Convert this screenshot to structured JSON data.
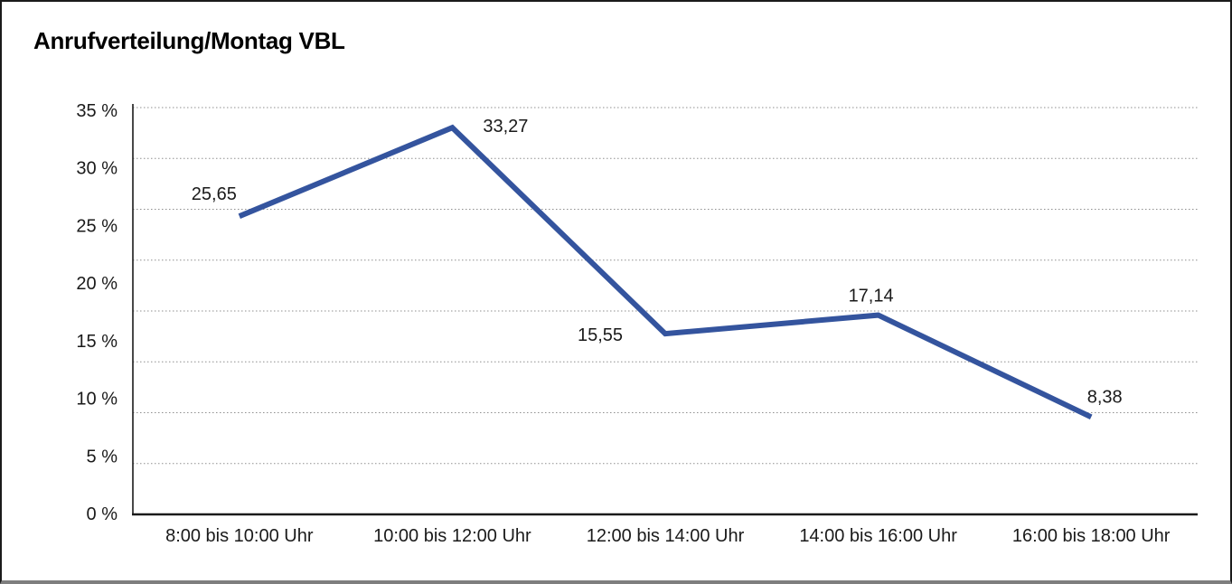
{
  "window": {
    "title": "Anrufverteilung/Montag VBL"
  },
  "chart_data": {
    "type": "line",
    "title": "Anrufverteilung/Montag VBL",
    "categories": [
      "8:00 bis 10:00 Uhr",
      "10:00 bis 12:00 Uhr",
      "12:00 bis 14:00 Uhr",
      "14:00 bis 16:00 Uhr",
      "16:00 bis 18:00 Uhr"
    ],
    "series": [
      {
        "name": "Anrufverteilung Montag VBL",
        "values": [
          25.65,
          33.27,
          15.55,
          17.14,
          8.38
        ],
        "value_labels": [
          "25,65",
          "33,27",
          "15,55",
          "17,14",
          "8,38"
        ]
      }
    ],
    "xlabel": "",
    "ylabel": "",
    "ylim": [
      0,
      35
    ],
    "y_tick_values": [
      35,
      30,
      25,
      20,
      15,
      10,
      5,
      0
    ],
    "y_tick_labels": [
      "35 %",
      "30 %",
      "25 %",
      "20 %",
      "15 %",
      "10 %",
      "5 %",
      "0 %"
    ],
    "grid": "dotted-horizontal",
    "grid_divisions": 8,
    "legend": "none",
    "colors": {
      "line": "#34549E",
      "grid": "#8f8f8f",
      "axis": "#1a1a1a",
      "text": "#1a1a1a",
      "frame_border": "#1b1b1b",
      "frame_border_bottom": "#7e7e7e",
      "background": "#ffffff"
    }
  }
}
